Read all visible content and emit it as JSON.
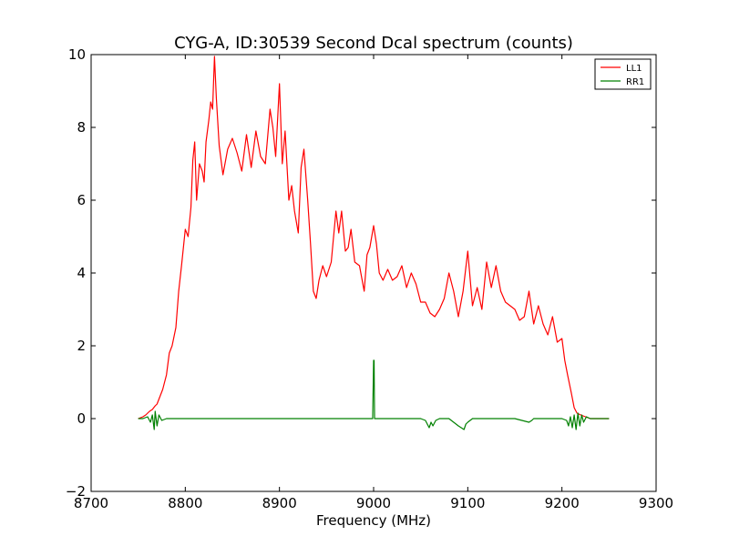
{
  "chart_data": {
    "type": "line",
    "title": "CYG-A, ID:30539 Second Dcal spectrum (counts)",
    "xlabel": "Frequency (MHz)",
    "ylabel": "",
    "xlim": [
      8700,
      9300
    ],
    "ylim": [
      -2,
      10
    ],
    "xticks": [
      8700,
      8800,
      8900,
      9000,
      9100,
      9200,
      9300
    ],
    "yticks": [
      -2,
      0,
      2,
      4,
      6,
      8,
      10
    ],
    "grid": false,
    "legend": {
      "placement": "top-right"
    },
    "series": [
      {
        "name": "LL1",
        "color": "#ff0000",
        "x": [
          8750,
          8755,
          8758,
          8762,
          8765,
          8768,
          8770,
          8773,
          8776,
          8780,
          8783,
          8786,
          8790,
          8793,
          8796,
          8800,
          8803,
          8806,
          8808,
          8810,
          8812,
          8815,
          8818,
          8820,
          8822,
          8825,
          8827,
          8829,
          8831,
          8833,
          8836,
          8840,
          8845,
          8850,
          8855,
          8860,
          8865,
          8870,
          8875,
          8880,
          8885,
          8890,
          8893,
          8896,
          8900,
          8903,
          8906,
          8910,
          8913,
          8916,
          8920,
          8923,
          8926,
          8930,
          8933,
          8936,
          8939,
          8942,
          8946,
          8950,
          8955,
          8960,
          8963,
          8966,
          8970,
          8973,
          8976,
          8980,
          8985,
          8990,
          8993,
          8996,
          9000,
          9003,
          9006,
          9010,
          9015,
          9020,
          9025,
          9030,
          9035,
          9040,
          9045,
          9050,
          9055,
          9060,
          9065,
          9070,
          9075,
          9080,
          9085,
          9090,
          9095,
          9100,
          9105,
          9110,
          9115,
          9120,
          9125,
          9130,
          9135,
          9140,
          9145,
          9150,
          9155,
          9160,
          9165,
          9170,
          9175,
          9180,
          9185,
          9190,
          9195,
          9200,
          9203,
          9206,
          9210,
          9213,
          9216,
          9220,
          9225,
          9230,
          9240,
          9250
        ],
        "y": [
          0.0,
          0.05,
          0.1,
          0.2,
          0.25,
          0.35,
          0.4,
          0.6,
          0.8,
          1.2,
          1.8,
          2.0,
          2.5,
          3.5,
          4.2,
          5.2,
          5.0,
          5.8,
          7.1,
          7.6,
          6.0,
          7.0,
          6.8,
          6.5,
          7.6,
          8.2,
          8.7,
          8.5,
          9.95,
          8.8,
          7.5,
          6.7,
          7.4,
          7.7,
          7.3,
          6.8,
          7.8,
          6.9,
          7.9,
          7.2,
          7.0,
          8.5,
          8.0,
          7.2,
          9.2,
          7.0,
          7.9,
          6.0,
          6.4,
          5.7,
          5.1,
          6.9,
          7.4,
          6.0,
          4.8,
          3.5,
          3.3,
          3.8,
          4.2,
          3.9,
          4.3,
          5.7,
          5.1,
          5.7,
          4.6,
          4.7,
          5.2,
          4.3,
          4.2,
          3.5,
          4.5,
          4.7,
          5.3,
          4.8,
          4.0,
          3.8,
          4.1,
          3.8,
          3.9,
          4.2,
          3.6,
          4.0,
          3.7,
          3.2,
          3.2,
          2.9,
          2.8,
          3.0,
          3.3,
          4.0,
          3.5,
          2.8,
          3.5,
          4.6,
          3.1,
          3.6,
          3.0,
          4.3,
          3.6,
          4.2,
          3.5,
          3.2,
          3.1,
          3.0,
          2.7,
          2.8,
          3.5,
          2.6,
          3.1,
          2.6,
          2.3,
          2.8,
          2.1,
          2.2,
          1.6,
          1.2,
          0.7,
          0.3,
          0.15,
          0.1,
          0.05,
          0.0,
          0.0,
          0.0
        ]
      },
      {
        "name": "RR1",
        "color": "#008000",
        "x": [
          8750,
          8755,
          8760,
          8763,
          8765,
          8767,
          8768,
          8770,
          8772,
          8775,
          8780,
          8790,
          8800,
          8850,
          8900,
          8950,
          8999,
          9000,
          9000.5,
          9001,
          9002,
          9050,
          9055,
          9057,
          9059,
          9061,
          9063,
          9066,
          9070,
          9080,
          9085,
          9090,
          9093,
          9096,
          9098,
          9100,
          9105,
          9110,
          9150,
          9165,
          9168,
          9170,
          9180,
          9200,
          9205,
          9207,
          9209,
          9211,
          9213,
          9215,
          9217,
          9219,
          9221,
          9223,
          9226,
          9230,
          9240,
          9250
        ],
        "y": [
          0.0,
          0.0,
          0.05,
          -0.1,
          0.1,
          -0.3,
          0.2,
          -0.2,
          0.1,
          -0.05,
          0.0,
          0.0,
          0.0,
          0.0,
          0.0,
          0.0,
          0.0,
          1.6,
          1.6,
          0.0,
          0.0,
          0.0,
          -0.05,
          -0.15,
          -0.25,
          -0.1,
          -0.2,
          -0.05,
          0.0,
          0.0,
          -0.1,
          -0.2,
          -0.25,
          -0.3,
          -0.15,
          -0.1,
          0.0,
          0.0,
          0.0,
          -0.1,
          -0.05,
          0.0,
          0.0,
          0.0,
          -0.05,
          -0.2,
          0.05,
          -0.25,
          0.1,
          -0.3,
          0.15,
          -0.2,
          0.1,
          -0.1,
          0.05,
          0.0,
          0.0,
          0.0
        ]
      }
    ]
  }
}
